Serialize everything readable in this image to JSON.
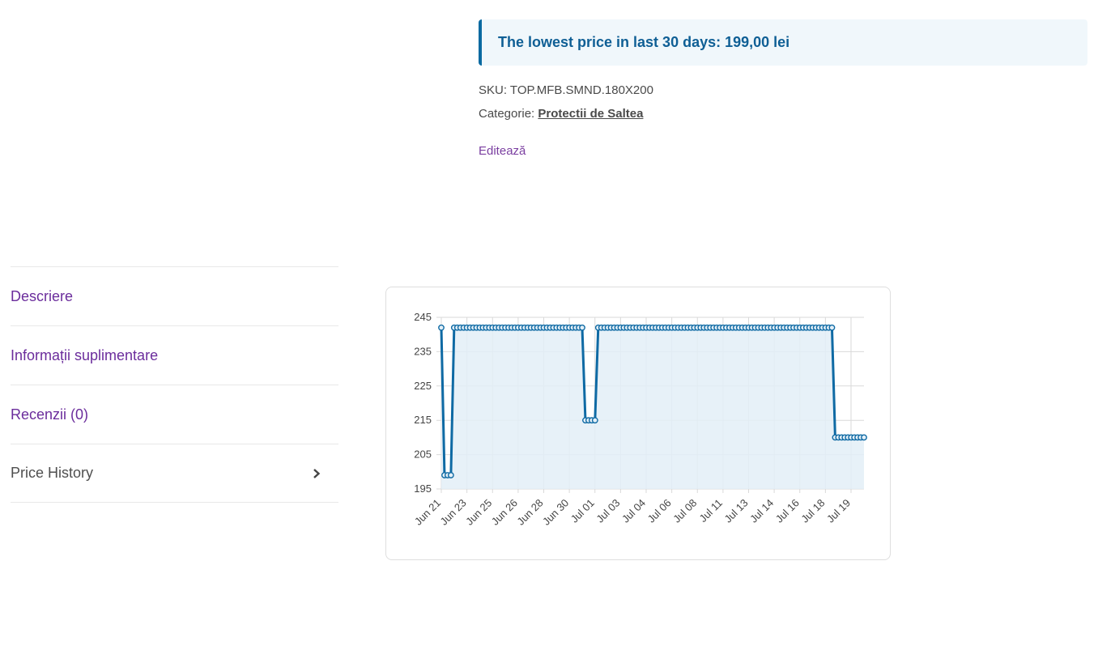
{
  "notice": {
    "text": "The lowest price in last 30 days: 199,00 lei"
  },
  "product_meta": {
    "sku_label": "SKU:",
    "sku_value": "TOP.MFB.SMND.180X200",
    "category_label": "Categorie:",
    "category_value": "Protectii de Saltea",
    "edit_link": "Editează"
  },
  "tabs": [
    {
      "label": "Descriere",
      "active": false
    },
    {
      "label": "Informații suplimentare",
      "active": false
    },
    {
      "label": "Recenzii (0)",
      "active": false
    },
    {
      "label": "Price History",
      "active": true
    }
  ],
  "colors": {
    "accent": "#0f6aa4",
    "link": "#6b2d9c",
    "notice_bg": "#f0f7fb",
    "area_fill": "#e3eff7"
  },
  "chart_data": {
    "type": "area",
    "y_ticks": [
      195,
      205,
      215,
      225,
      235,
      245
    ],
    "ylim": [
      195,
      245
    ],
    "x_tick_labels": [
      "Jun 21",
      "Jun 23",
      "Jun 25",
      "Jun 26",
      "Jun 28",
      "Jun 30",
      "Jul 01",
      "Jul 03",
      "Jul 04",
      "Jul 06",
      "Jul 08",
      "Jul 11",
      "Jul 13",
      "Jul 14",
      "Jul 16",
      "Jul 18",
      "Jul 19"
    ],
    "grid": true,
    "series": [
      {
        "segments": [
          {
            "from": 0,
            "to": 1,
            "value": 242
          },
          {
            "from": 1,
            "to": 4,
            "value": 199
          },
          {
            "from": 4,
            "to": 45,
            "value": 242
          },
          {
            "from": 45,
            "to": 49,
            "value": 215
          },
          {
            "from": 49,
            "to": 123,
            "value": 242
          },
          {
            "from": 123,
            "to": 133,
            "value": 210
          }
        ]
      }
    ]
  }
}
